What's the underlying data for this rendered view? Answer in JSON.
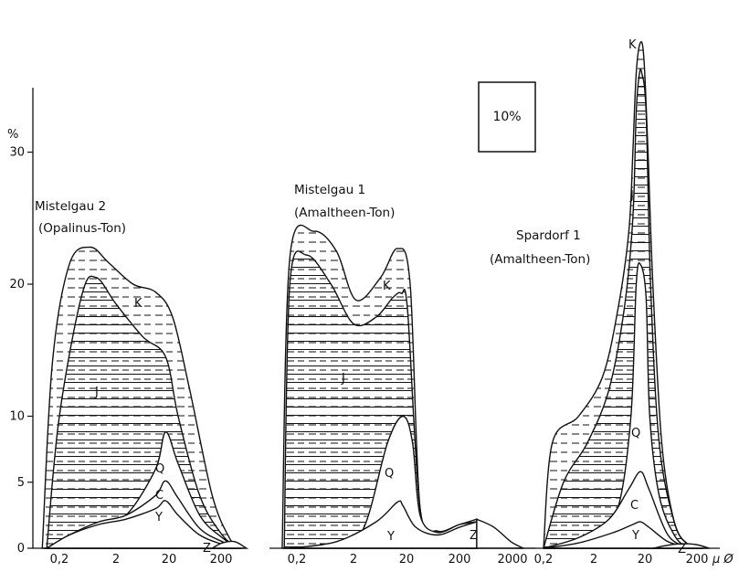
{
  "chart_data": {
    "type": "area",
    "y_axis": {
      "unit": "%",
      "ticks": [
        0,
        5,
        10,
        20,
        30
      ],
      "ylim": [
        0,
        35
      ]
    },
    "x_axis_unit": "μ Ø",
    "x_scale": "log",
    "scale_box_label": "10%",
    "band_labels": [
      "K",
      "J",
      "Q",
      "C",
      "Y",
      "Z"
    ],
    "panels": [
      {
        "title": "Mistelgau 2",
        "subtitle": "(Opalinus-Ton)",
        "x_ticks": [
          "0,2",
          "2",
          "20",
          "200"
        ],
        "x_range": [
          0.07,
          600
        ],
        "labels": [
          "K",
          "J",
          "Q",
          "C",
          "Y",
          "Z"
        ],
        "bands": [
          {
            "name": "Y",
            "x": [
              0.12,
              0.3,
              1,
              3,
              10,
              15,
              25,
              60,
              150,
              300
            ],
            "y": [
              0,
              1,
              1.8,
              2.2,
              3,
              3.6,
              2.5,
              1,
              0.3,
              0
            ]
          },
          {
            "name": "C",
            "x": [
              0.12,
              0.3,
              1,
              3,
              10,
              15,
              25,
              60,
              150,
              300
            ],
            "y": [
              0,
              1,
              2,
              2.5,
              4,
              5.1,
              3.8,
              1.5,
              0.5,
              0
            ]
          },
          {
            "name": "Q",
            "x": [
              0.12,
              0.3,
              1,
              3,
              10,
              15,
              25,
              60,
              150,
              300
            ],
            "y": [
              0,
              1,
              2,
              2.5,
              6,
              8.8,
              6.4,
              2.5,
              0.8,
              0
            ]
          },
          {
            "name": "J",
            "x": [
              0.12,
              0.2,
              0.5,
              0.9,
              2,
              6,
              15,
              25,
              60,
              150,
              300
            ],
            "y": [
              0,
              10,
              19.2,
              20.5,
              18.5,
              16,
              14.5,
              10,
              4,
              1,
              0
            ]
          },
          {
            "name": "K",
            "x": [
              0.1,
              0.15,
              0.3,
              0.7,
              1.5,
              4,
              10,
              20,
              40,
              100,
              200,
              300
            ],
            "y": [
              0,
              14,
              21.5,
              22.8,
              21.6,
              20,
              19.4,
              17.5,
              12,
              4,
              0.8,
              0
            ]
          },
          {
            "name": "Z",
            "x": [
              100,
              150,
              250,
              400
            ],
            "y": [
              0,
              0.4,
              0.5,
              0
            ]
          }
        ]
      },
      {
        "title": "Mistelgau 1",
        "subtitle": "(Amaltheen-Ton)",
        "x_ticks": [
          "0,2",
          "2",
          "20",
          "200",
          "2000"
        ],
        "x_range": [
          0.07,
          2500
        ],
        "labels": [
          "K",
          "J",
          "Q",
          "Y",
          "Z"
        ],
        "bands": [
          {
            "name": "Y",
            "x": [
              0.15,
              1,
              5,
              12,
              15,
              25,
              60,
              150,
              300
            ],
            "y": [
              0,
              0.5,
              2,
              3.5,
              3.2,
              1.6,
              1,
              1.6,
              2
            ]
          },
          {
            "name": "Q",
            "x": [
              0.15,
              1,
              3,
              8,
              15,
              22,
              30,
              60,
              150,
              300
            ],
            "y": [
              0,
              0.3,
              1.5,
              8,
              10,
              8,
              2.5,
              1.2,
              1.8,
              2
            ]
          },
          {
            "name": "J",
            "x": [
              0.12,
              0.15,
              0.3,
              0.8,
              2,
              5,
              10,
              14,
              18,
              30,
              60,
              150,
              300
            ],
            "y": [
              0,
              20,
              22.2,
              20,
              17,
              17.5,
              19,
              19.3,
              18,
              3,
              1.3,
              1.8,
              2
            ]
          },
          {
            "name": "K",
            "x": [
              0.11,
              0.15,
              0.4,
              1,
              2.2,
              6,
              12,
              20,
              30,
              60,
              150,
              300
            ],
            "y": [
              0,
              22,
              24,
              22.5,
              18.8,
              20.5,
              22.7,
              20,
              3,
              1.3,
              1.8,
              2.2
            ]
          },
          {
            "name": "Z",
            "x": [
              300,
              600,
              1200,
              2000
            ],
            "y": [
              2.2,
              1.6,
              0.5,
              0
            ]
          }
        ]
      },
      {
        "title": "Spardorf 1",
        "subtitle": "(Amaltheen-Ton)",
        "x_ticks": [
          "0,2",
          "2",
          "20",
          "200"
        ],
        "x_range": [
          0.2,
          600
        ],
        "labels": [
          "K",
          "J",
          "Q",
          "C",
          "Y",
          "Z"
        ],
        "bands": [
          {
            "name": "Y",
            "x": [
              0.2,
              1,
              5,
              12,
              17,
              25,
              60,
              150,
              300
            ],
            "y": [
              0,
              0.4,
              1.2,
              1.8,
              2,
              1.6,
              0.5,
              0.1,
              0
            ]
          },
          {
            "name": "C",
            "x": [
              0.2,
              1,
              4,
              10,
              17,
              25,
              60,
              150,
              300
            ],
            "y": [
              0,
              0.8,
              2.2,
              4.5,
              5.8,
              4.5,
              1,
              0.1,
              0
            ]
          },
          {
            "name": "Q",
            "x": [
              0.2,
              2,
              6,
              11,
              14,
              17,
              22,
              26,
              40,
              80,
              150,
              300
            ],
            "y": [
              0,
              1,
              3,
              10,
              20,
              21.5,
              19,
              10,
              4,
              1,
              0.1,
              0
            ]
          },
          {
            "name": "J",
            "x": [
              0.2,
              0.5,
              1.5,
              4,
              8,
              12,
              14,
              16,
              18,
              22,
              27,
              40,
              80,
              150,
              300
            ],
            "y": [
              0,
              5,
              8,
              12,
              18,
              25,
              33,
              35.8,
              36,
              33,
              20,
              8,
              2,
              0.3,
              0
            ]
          },
          {
            "name": "K",
            "x": [
              0.2,
              0.3,
              1,
              3,
              6,
              10,
              12,
              14,
              17,
              20,
              24,
              30,
              45,
              80,
              150,
              300
            ],
            "y": [
              0,
              8,
              10,
              13,
              18,
              24,
              30,
              36,
              38.3,
              37,
              30,
              20,
              8,
              2,
              0.3,
              0
            ]
          },
          {
            "name": "Z",
            "x": [
              30,
              80,
              200,
              400
            ],
            "y": [
              0,
              0.3,
              0.3,
              0
            ]
          }
        ]
      }
    ]
  }
}
